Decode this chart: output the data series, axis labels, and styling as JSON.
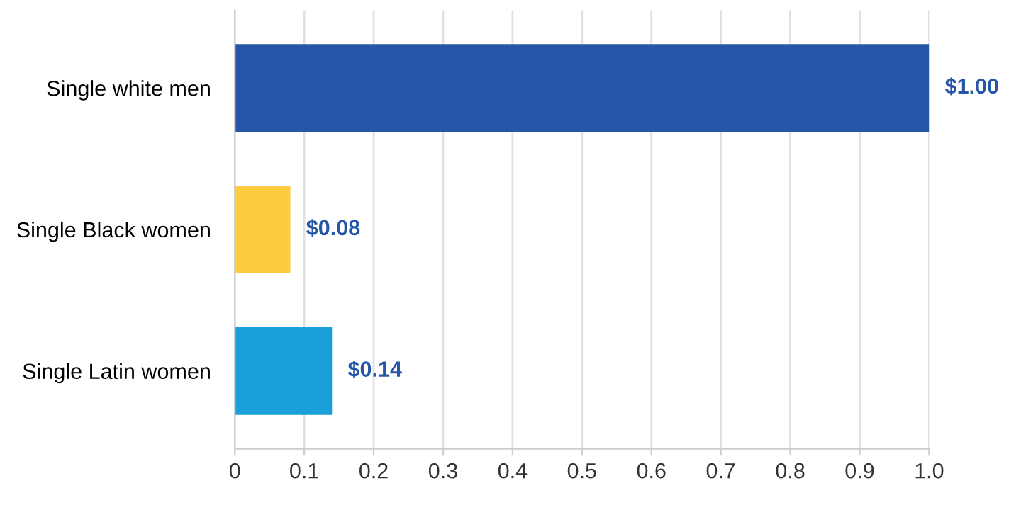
{
  "chart_data": {
    "type": "bar",
    "orientation": "horizontal",
    "categories": [
      "Single white men",
      "Single Black women",
      "Single Latin women"
    ],
    "values": [
      1,
      0.08,
      0.14
    ],
    "colors": [
      "#2656a8",
      "#fccd3f",
      "#1a9fd9"
    ],
    "value_labels": [
      "$1.00",
      "$0.08",
      "$0.14"
    ],
    "xlim": [
      0,
      1
    ],
    "xticks": [
      0,
      0.1,
      0.2,
      0.3,
      0.4,
      0.5,
      0.6,
      0.7,
      0.8,
      0.9,
      {
        "value": 1,
        "label": "1.0"
      }
    ],
    "grid": "x",
    "legend": false
  }
}
